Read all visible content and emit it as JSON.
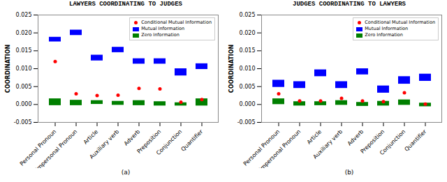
{
  "chart_data": [
    {
      "type": "range",
      "title": "LAWYERS COORDINATING TO JUDGES",
      "xlabel": "(a)",
      "ylabel": "COORDINATION",
      "categories": [
        "Personal Pronoun",
        "Impersonal Pronoun",
        "Article",
        "Auxiliary verb",
        "Adverb",
        "Preposition",
        "Conjunction",
        "Quantifier"
      ],
      "ylim": [
        -0.005,
        0.025
      ],
      "yticks": [
        -0.005,
        {
          "value": 0,
          "label": "0.000"
        },
        0.005,
        {
          "value": 0.01,
          "label": "0.010"
        },
        0.015,
        {
          "value": 0.02,
          "label": "0.020"
        },
        0.025
      ],
      "legend": "upper right",
      "series": [
        {
          "name": "Conditional Mutual Information",
          "type": "scatter",
          "marker": "circle",
          "color": "#ff0000",
          "values": [
            0.012,
            0.003,
            0.0025,
            0.0026,
            0.0045,
            0.00435,
            0.00065,
            0.0014
          ]
        },
        {
          "name": "Mutual Information",
          "type": "range",
          "color": "#0000ff",
          "low": [
            0.0175,
            0.0193,
            0.0122,
            0.0145,
            0.0113,
            0.0113,
            0.008,
            0.0098
          ],
          "high": [
            0.0188,
            0.0208,
            0.0138,
            0.016,
            0.0128,
            0.0128,
            0.01,
            0.0114
          ]
        },
        {
          "name": "Zero Information",
          "type": "range",
          "color": "#007f00",
          "low": [
            -0.0003,
            -0.0003,
            5e-05,
            -0.0002,
            -0.0003,
            -0.0004,
            -0.0004,
            -0.0004
          ],
          "high": [
            0.0016,
            0.0012,
            0.0011,
            0.0009,
            0.0011,
            0.0008,
            0.0005,
            0.0016
          ]
        }
      ]
    },
    {
      "type": "range",
      "title": "JUDGES COORDINATING TO LAWYERS",
      "xlabel": "(b)",
      "ylabel": "COORDINATION",
      "categories": [
        "Personal Pronoun",
        "Impersonal Pronoun",
        "Article",
        "Auxiliary verb",
        "Adverb",
        "Preposition",
        "Conjunction",
        "Quantifier"
      ],
      "ylim": [
        -0.005,
        0.025
      ],
      "yticks": [
        -0.005,
        {
          "value": 0,
          "label": "0.000"
        },
        0.005,
        {
          "value": 0.01,
          "label": "0.010"
        },
        0.015,
        {
          "value": 0.02,
          "label": "0.020"
        },
        0.025
      ],
      "legend": "upper right",
      "series": [
        {
          "name": "Conditional Mutual Information",
          "type": "scatter",
          "marker": "circle",
          "color": "#ff0000",
          "values": [
            0.003,
            0.001,
            0.001,
            0.0017,
            0.001,
            0.0008,
            0.0033,
            0.0001
          ]
        },
        {
          "name": "Mutual Information",
          "type": "range",
          "color": "#0000ff",
          "low": [
            0.0048,
            0.0045,
            0.0078,
            0.0045,
            0.0083,
            0.0032,
            0.0057,
            0.0065
          ],
          "high": [
            0.0068,
            0.0064,
            0.0097,
            0.0064,
            0.01,
            0.0052,
            0.0078,
            0.0085
          ]
        },
        {
          "name": "Zero Information",
          "type": "range",
          "color": "#007f00",
          "low": [
            0.0,
            -0.0004,
            -0.0003,
            -0.0002,
            -0.0005,
            -0.0004,
            -0.0002,
            -0.0006
          ],
          "high": [
            0.0016,
            0.0008,
            0.0008,
            0.0011,
            0.0006,
            0.0009,
            0.0013,
            0.0004
          ]
        }
      ]
    }
  ]
}
